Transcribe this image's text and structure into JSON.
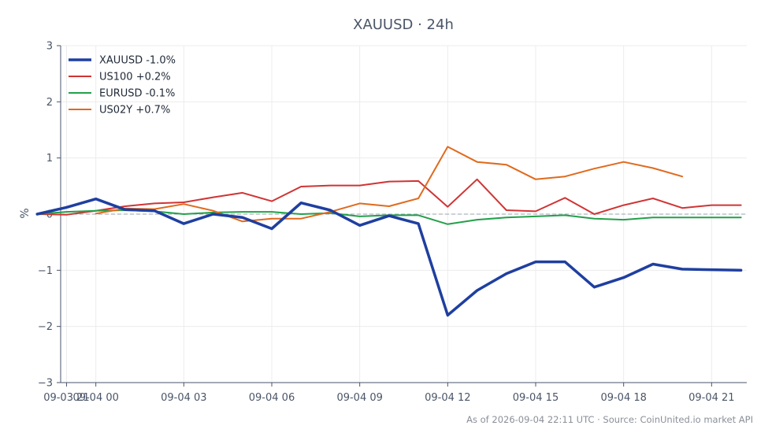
{
  "chart_data": {
    "type": "line",
    "title": "XAUUSD · 24h",
    "ylabel": "%",
    "xlabel": "",
    "ylim": [
      -3,
      3
    ],
    "yticks": [
      3,
      2,
      1,
      0,
      -1,
      -2,
      -3
    ],
    "ytick_labels": [
      "3",
      "2",
      "1",
      "0",
      "−1",
      "−2",
      "−3"
    ],
    "xticks": [
      {
        "t": -1,
        "label": "09-03 21"
      },
      {
        "t": 0,
        "label": "09-04 00"
      },
      {
        "t": 3,
        "label": "09-04 03"
      },
      {
        "t": 6,
        "label": "09-04 06"
      },
      {
        "t": 9,
        "label": "09-04 09"
      },
      {
        "t": 12,
        "label": "09-04 12"
      },
      {
        "t": 15,
        "label": "09-04 15"
      },
      {
        "t": 18,
        "label": "09-04 18"
      },
      {
        "t": 21,
        "label": "09-04 21"
      }
    ],
    "xlim": [
      -1.2,
      22.2
    ],
    "grid": true,
    "legend": "top-left",
    "zero_line": true,
    "series": [
      {
        "name": "XAUUSD -1.0%",
        "color": "#1f3fa0",
        "width": 3.5,
        "x": [
          -2,
          -1,
          0,
          1,
          2,
          3,
          4,
          5,
          6,
          7,
          8,
          9,
          10,
          11,
          12,
          13,
          14,
          15,
          16,
          17,
          18,
          19,
          20,
          21,
          22
        ],
        "y": [
          0.0,
          0.12,
          0.27,
          0.08,
          0.06,
          -0.17,
          0.0,
          -0.06,
          -0.26,
          0.2,
          0.07,
          -0.2,
          -0.03,
          -0.17,
          -1.8,
          -1.36,
          -1.06,
          -0.85,
          -0.85,
          -1.3,
          -1.13,
          -0.89,
          -0.98,
          -0.99,
          -1.0
        ]
      },
      {
        "name": "US100 +0.2%",
        "color": "#d03434",
        "width": 2,
        "x": [
          -2,
          -1,
          0,
          1,
          2,
          3,
          4,
          5,
          6,
          7,
          8,
          9,
          10,
          11,
          12,
          13,
          14,
          15,
          16,
          17,
          18,
          19,
          20,
          21,
          22
        ],
        "y": [
          0.0,
          -0.01,
          0.06,
          0.14,
          0.19,
          0.21,
          0.3,
          0.38,
          0.23,
          0.49,
          0.51,
          0.51,
          0.58,
          0.59,
          0.13,
          0.62,
          0.07,
          0.05,
          0.29,
          0.0,
          0.16,
          0.28,
          0.11,
          0.16,
          0.16
        ]
      },
      {
        "name": "EURUSD -0.1%",
        "color": "#23a04a",
        "width": 2,
        "x": [
          -2,
          -1,
          0,
          1,
          2,
          3,
          4,
          5,
          6,
          7,
          8,
          9,
          10,
          11,
          12,
          13,
          14,
          15,
          16,
          17,
          18,
          19,
          20,
          21,
          22
        ],
        "y": [
          0.0,
          0.04,
          0.06,
          0.07,
          0.05,
          0.0,
          0.03,
          0.04,
          0.04,
          0.0,
          0.02,
          -0.04,
          -0.02,
          -0.02,
          -0.18,
          -0.1,
          -0.06,
          -0.04,
          -0.02,
          -0.08,
          -0.1,
          -0.06,
          -0.06,
          -0.06,
          -0.06
        ]
      },
      {
        "name": "US02Y +0.7%",
        "color": "#e06a1e",
        "width": 2,
        "x": [
          0,
          1,
          2,
          3,
          4,
          5,
          6,
          7,
          8,
          9,
          10,
          11,
          12,
          13,
          14,
          15,
          16,
          17,
          18,
          19,
          20
        ],
        "y": [
          0.01,
          0.1,
          0.09,
          0.18,
          0.06,
          -0.13,
          -0.08,
          -0.08,
          0.04,
          0.19,
          0.14,
          0.28,
          1.2,
          0.93,
          0.88,
          0.62,
          0.67,
          0.81,
          0.93,
          0.82,
          0.67
        ]
      }
    ]
  },
  "footer": "As of 2026-09-04 22:11 UTC · Source: CoinUnited.io market API"
}
